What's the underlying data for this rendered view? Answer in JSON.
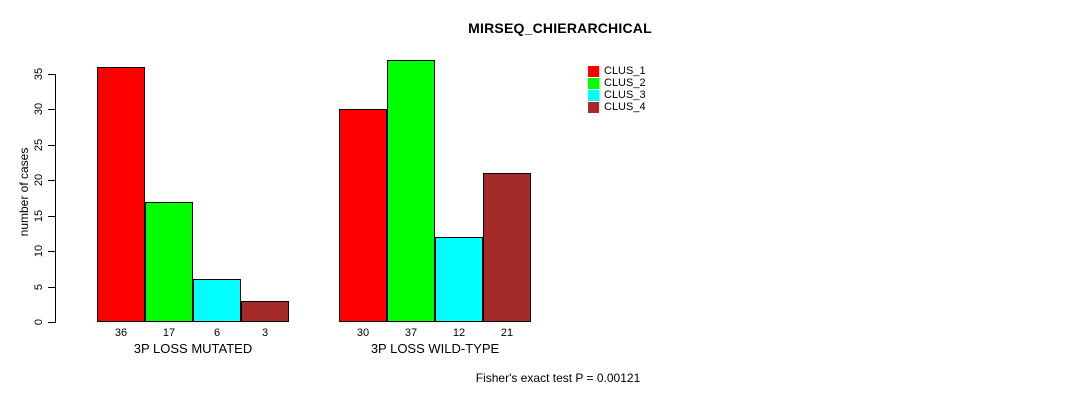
{
  "chart_data": {
    "type": "bar",
    "title": "MIRSEQ_CHIERARCHICAL",
    "ylabel": "number of cases",
    "xlabel": "",
    "yticks": [
      0,
      5,
      10,
      15,
      20,
      25,
      30,
      35
    ],
    "ylim": [
      0,
      35
    ],
    "grid": false,
    "legend_position": "top-right",
    "categories": [
      "3P LOSS MUTATED",
      "3P LOSS WILD-TYPE"
    ],
    "series": [
      {
        "name": "CLUS_1",
        "color": "#FF0000",
        "values": [
          36,
          30
        ]
      },
      {
        "name": "CLUS_2",
        "color": "#00FF00",
        "values": [
          17,
          37
        ]
      },
      {
        "name": "CLUS_3",
        "color": "#00FFFF",
        "values": [
          6,
          12
        ]
      },
      {
        "name": "CLUS_4",
        "color": "#A52A2A",
        "values": [
          3,
          21
        ]
      }
    ],
    "bar_value_labels": {
      "group_0": [
        36,
        17,
        6,
        3
      ],
      "group_1": [
        30,
        37,
        12,
        21
      ]
    },
    "annotation": "Fisher's exact test P = 0.00121"
  }
}
